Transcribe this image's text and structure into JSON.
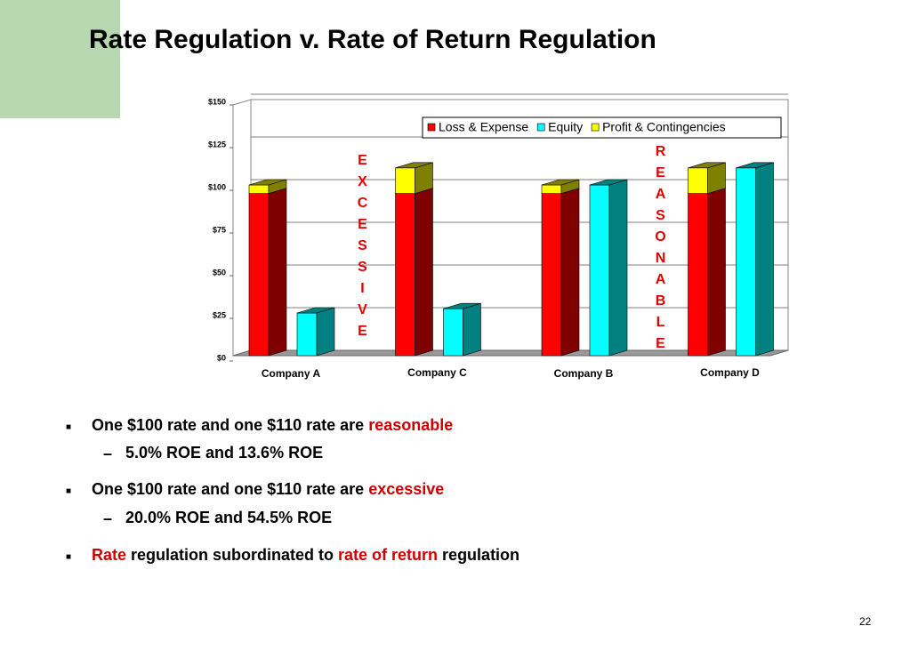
{
  "title": "Rate Regulation v. Rate of Return Regulation",
  "chart_data": {
    "type": "bar3d_stacked",
    "categories": [
      "Company A",
      "Company C",
      "Company B",
      "Company D"
    ],
    "series": [
      {
        "name": "Loss & Expense",
        "color": "#ff0000",
        "side_color": "#800000",
        "stack": "rate",
        "values": [
          95,
          95,
          95,
          95
        ]
      },
      {
        "name": "Profit & Contingencies",
        "color": "#ffff00",
        "side_color": "#808000",
        "stack": "rate",
        "values": [
          5,
          15,
          5,
          15
        ]
      },
      {
        "name": "Equity",
        "color": "#00ffff",
        "side_color": "#008080",
        "stack": "equity",
        "values": [
          25,
          27.5,
          100,
          110
        ]
      }
    ],
    "legend_order": [
      0,
      2,
      1
    ],
    "ylim": [
      0,
      150
    ],
    "yticks": [
      {
        "value": 0,
        "label": "$0"
      },
      {
        "value": 25,
        "label": "$25"
      },
      {
        "value": 50,
        "label": "$50"
      },
      {
        "value": 75,
        "label": "$75"
      },
      {
        "value": 100,
        "label": "$100"
      },
      {
        "value": 125,
        "label": "$125"
      },
      {
        "value": 150,
        "label": "$150"
      }
    ],
    "grid": true,
    "annotations": [
      "EXCESSIVE",
      "REASONABLE"
    ]
  },
  "bullets": [
    {
      "level": 1,
      "parts": [
        {
          "text": "One $100 rate and one $110 rate are ",
          "highlight": false
        },
        {
          "text": "reasonable",
          "highlight": true
        }
      ]
    },
    {
      "level": 2,
      "parts": [
        {
          "text": "5.0% ROE and 13.6% ROE",
          "highlight": false
        }
      ]
    },
    {
      "level": 1,
      "parts": [
        {
          "text": "One $100 rate and one $110 rate are ",
          "highlight": false
        },
        {
          "text": "excessive",
          "highlight": true
        }
      ]
    },
    {
      "level": 2,
      "parts": [
        {
          "text": "20.0% ROE and 54.5% ROE",
          "highlight": false
        }
      ]
    },
    {
      "level": 1,
      "parts": [
        {
          "text": "Rate",
          "highlight": true
        },
        {
          "text": " regulation subordinated to ",
          "highlight": false
        },
        {
          "text": "rate of return",
          "highlight": true
        },
        {
          "text": " regulation",
          "highlight": false
        }
      ]
    }
  ],
  "page_number": "22"
}
